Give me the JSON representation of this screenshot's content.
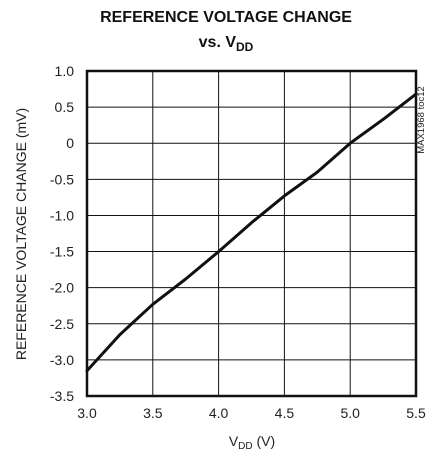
{
  "chart_data": {
    "type": "line",
    "title_line1": "REFERENCE VOLTAGE CHANGE",
    "title_line2_main": "vs. V",
    "title_line2_sub": "DD",
    "ylabel": "REFERENCE VOLTAGE CHANGE (mV)",
    "xlabel_main": "V",
    "xlabel_sub": "DD",
    "xlabel_unit": " (V)",
    "side_label": "MAX1968 toc12",
    "xlim": [
      3.0,
      5.5
    ],
    "ylim": [
      -3.5,
      1.0
    ],
    "x_ticks": [
      "3.0",
      "3.5",
      "4.0",
      "4.5",
      "5.0",
      "5.5"
    ],
    "y_ticks": [
      "1.0",
      "0.5",
      "0",
      "-0.5",
      "-1.0",
      "-1.5",
      "-2.0",
      "-2.5",
      "-3.0",
      "-3.5"
    ],
    "grid": true,
    "series": [
      {
        "x": [
          3.0,
          3.25,
          3.5,
          3.75,
          4.0,
          4.25,
          4.5,
          4.75,
          5.0,
          5.25,
          5.5
        ],
        "y": [
          -3.15,
          -2.65,
          -2.23,
          -1.88,
          -1.5,
          -1.1,
          -0.73,
          -0.4,
          0.0,
          0.33,
          0.68
        ]
      }
    ],
    "line_color": "#111111"
  }
}
